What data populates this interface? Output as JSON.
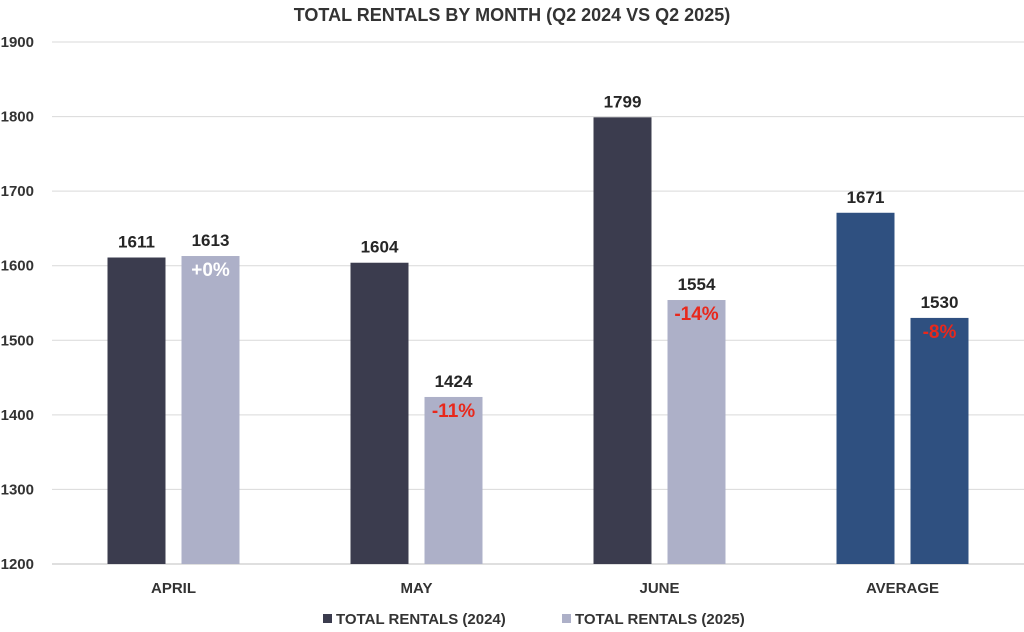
{
  "chart_data": {
    "type": "bar",
    "title": "TOTAL RENTALS BY MONTH (Q2 2024 VS Q2 2025)",
    "categories": [
      "APRIL",
      "MAY",
      "JUNE",
      "AVERAGE"
    ],
    "series": [
      {
        "name": "TOTAL RENTALS (2024)",
        "values": [
          1611,
          1604,
          1799,
          1671
        ],
        "value_labels": [
          "1611",
          "1604",
          "1799",
          "1671"
        ]
      },
      {
        "name": "TOTAL RENTALS (2025)",
        "values": [
          1613,
          1424,
          1554,
          1530
        ],
        "value_labels": [
          "1613",
          "1424",
          "1554",
          "1530"
        ]
      }
    ],
    "change_labels": [
      "+0%",
      "-11%",
      "-14%",
      "-8%"
    ],
    "ylim": [
      1200,
      1900
    ],
    "yticks": [
      "1200",
      "1300",
      "1400",
      "1500",
      "1600",
      "1700",
      "1800",
      "1900"
    ],
    "ytick_values": [
      1200,
      1300,
      1400,
      1500,
      1600,
      1700,
      1800,
      1900
    ],
    "grid": true,
    "legend": "bottom-center",
    "colors": {
      "series_2024": "#3b3c4e",
      "series_2025": "#adb0c8",
      "average_bars": "#2f5080",
      "change_positive": "#ffffff",
      "change_negative": "#e8281c",
      "grid": "#d9d9d9"
    }
  }
}
